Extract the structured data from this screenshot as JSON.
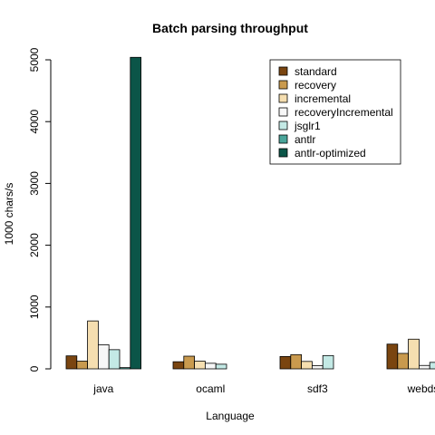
{
  "chart_data": {
    "type": "bar",
    "title": "Batch parsing throughput",
    "xlabel": "Language",
    "ylabel": "1000 chars/s",
    "categories": [
      "java",
      "ocaml",
      "sdf3",
      "webdsl"
    ],
    "ylim": [
      0,
      5000
    ],
    "yticks": [
      0,
      1000,
      2000,
      3000,
      4000,
      5000
    ],
    "grid": false,
    "legend_position": "top-right",
    "series": [
      {
        "name": "standard",
        "color": "#7a4510",
        "values": [
          210,
          115,
          200,
          400
        ]
      },
      {
        "name": "recovery",
        "color": "#c99a4e",
        "values": [
          125,
          205,
          230,
          250
        ]
      },
      {
        "name": "incremental",
        "color": "#f5deb0",
        "values": [
          775,
          125,
          120,
          480
        ]
      },
      {
        "name": "recoveryIncremental",
        "color": "#f7f7f7",
        "values": [
          390,
          90,
          50,
          55
        ]
      },
      {
        "name": "jsglr1",
        "color": "#c3e9e5",
        "values": [
          310,
          75,
          215,
          105
        ]
      },
      {
        "name": "antlr",
        "color": "#4aa59a",
        "values": [
          20,
          0,
          0,
          0
        ]
      },
      {
        "name": "antlr-optimized",
        "color": "#0b5548",
        "values": [
          5040,
          0,
          0,
          0
        ]
      }
    ]
  }
}
